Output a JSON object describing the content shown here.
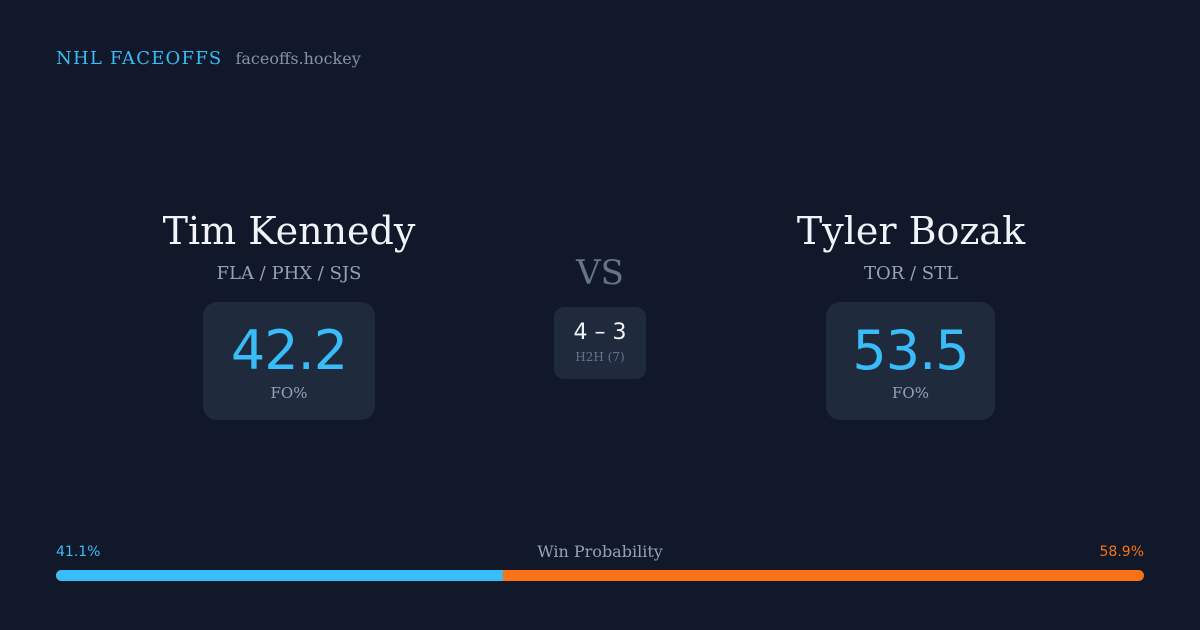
{
  "brand": {
    "name": "NHL FACEOFFS",
    "url": "faceoffs.hockey"
  },
  "player_left": {
    "name": "Tim Kennedy",
    "teams": "FLA / PHX / SJS",
    "fo_pct": "42.2",
    "fo_label": "FO%"
  },
  "vs_label": "VS",
  "h2h": {
    "score": "4 – 3",
    "label": "H2H (7)"
  },
  "player_right": {
    "name": "Tyler Bozak",
    "teams": "TOR / STL",
    "fo_pct": "53.5",
    "fo_label": "FO%"
  },
  "win_probability": {
    "title": "Win Probability",
    "left_label": "41.1%",
    "right_label": "58.9%",
    "left_fraction": 0.411
  },
  "colors": {
    "background": "#111829",
    "accent_blue": "#38bdf8",
    "accent_orange": "#f97316",
    "card": "#1f2a3c"
  }
}
